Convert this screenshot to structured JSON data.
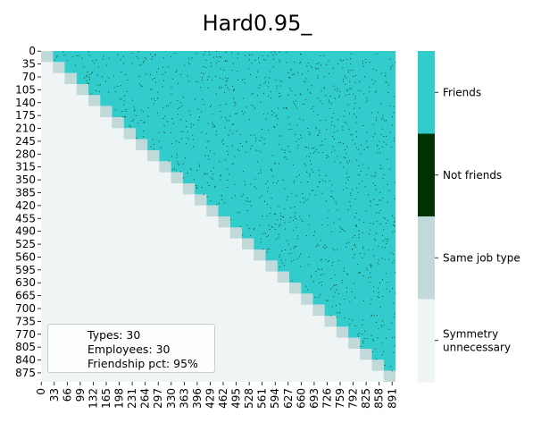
{
  "chart_data": {
    "type": "heatmap",
    "title": "Hard0.95_",
    "xlabel": "",
    "ylabel": "",
    "n": 900,
    "block_size": 30,
    "friendship_pct": 0.95,
    "x_ticks": [
      "0",
      "33",
      "66",
      "99",
      "132",
      "165",
      "198",
      "231",
      "264",
      "297",
      "330",
      "363",
      "396",
      "429",
      "462",
      "495",
      "528",
      "561",
      "594",
      "627",
      "660",
      "693",
      "726",
      "759",
      "792",
      "825",
      "858",
      "891"
    ],
    "y_ticks": [
      "0",
      "35",
      "70",
      "105",
      "140",
      "175",
      "210",
      "245",
      "280",
      "315",
      "350",
      "385",
      "420",
      "455",
      "490",
      "525",
      "560",
      "595",
      "630",
      "665",
      "700",
      "735",
      "770",
      "805",
      "840",
      "875"
    ],
    "colorbar": {
      "categories": [
        {
          "label": "Friends",
          "color": "#33cccc"
        },
        {
          "label": "Not friends",
          "color": "#003300"
        },
        {
          "label": "Same job type",
          "color": "#c2d9d9"
        },
        {
          "label": "Symmetry\nunnecessary",
          "color": "#eff5f5"
        }
      ]
    },
    "annotation": [
      "Types: 30",
      "Employees: 30",
      "Friendship pct: 95%"
    ]
  }
}
